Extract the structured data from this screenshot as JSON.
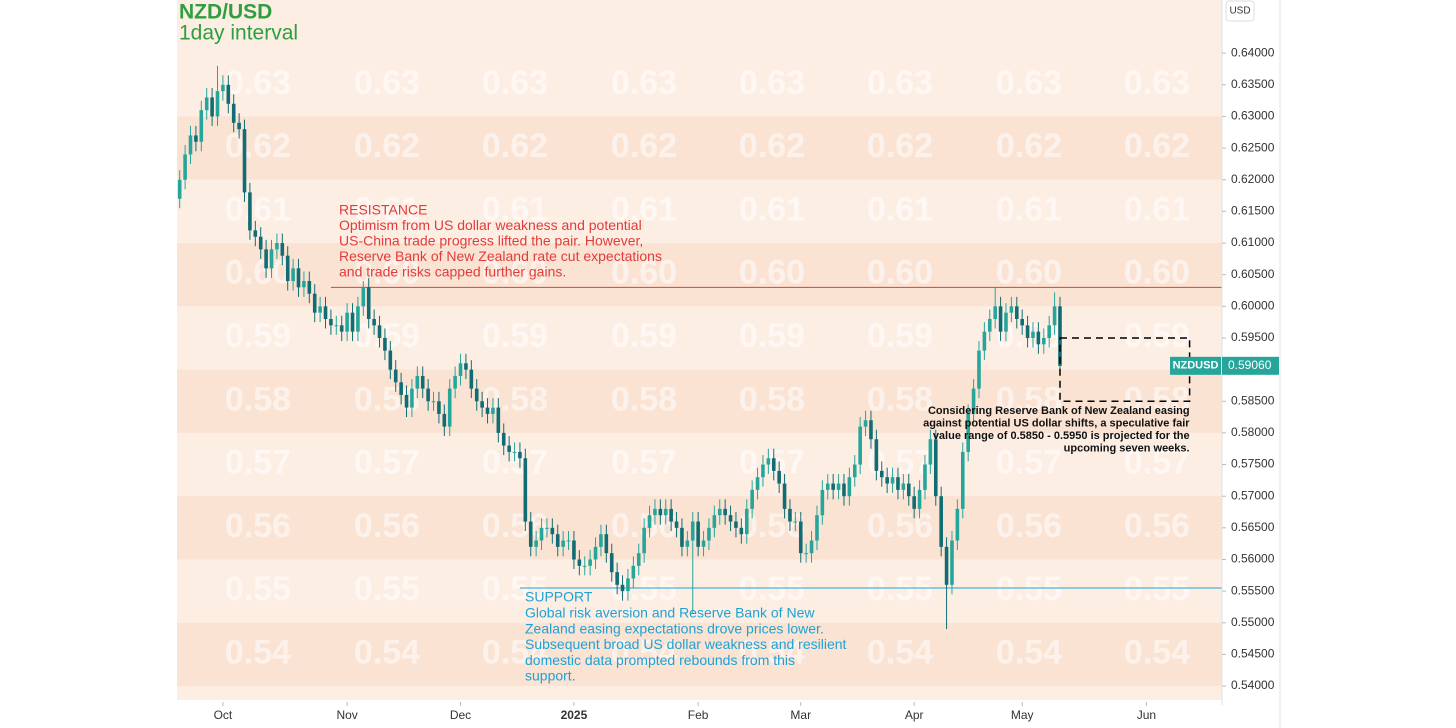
{
  "chart_data": {
    "type": "candlestick",
    "title": "NZD/USD",
    "subtitle": "1day interval",
    "currency": "USD",
    "symbol": "NZDUSD",
    "last_price": {
      "value": 0.5906,
      "label": "0.59060"
    },
    "up_color": "#26a69a",
    "down_color": "#116d73",
    "xlim": [
      -0.5,
      193
    ],
    "ylim": [
      0.5378,
      0.6484
    ],
    "xticks": [
      {
        "value": 8,
        "label": "Oct"
      },
      {
        "value": 31,
        "label": "Nov"
      },
      {
        "value": 52,
        "label": "Dec"
      },
      {
        "value": 73,
        "label": "2025"
      },
      {
        "value": 96,
        "label": "Feb"
      },
      {
        "value": 115,
        "label": "Mar"
      },
      {
        "value": 136,
        "label": "Apr"
      },
      {
        "value": 156,
        "label": "May"
      },
      {
        "value": 179,
        "label": "Jun"
      }
    ],
    "yticks": [
      {
        "value": 0.64,
        "label": "0.64000"
      },
      {
        "value": 0.635,
        "label": "0.63500"
      },
      {
        "value": 0.63,
        "label": "0.63000"
      },
      {
        "value": 0.625,
        "label": "0.62500"
      },
      {
        "value": 0.62,
        "label": "0.62000"
      },
      {
        "value": 0.615,
        "label": "0.61500"
      },
      {
        "value": 0.61,
        "label": "0.61000"
      },
      {
        "value": 0.605,
        "label": "0.60500"
      },
      {
        "value": 0.6,
        "label": "0.60000"
      },
      {
        "value": 0.595,
        "label": "0.59500"
      },
      {
        "value": 0.59,
        "label": "0.59000"
      },
      {
        "value": 0.585,
        "label": "0.58500"
      },
      {
        "value": 0.58,
        "label": "0.58000"
      },
      {
        "value": 0.575,
        "label": "0.57500"
      },
      {
        "value": 0.57,
        "label": "0.57000"
      },
      {
        "value": 0.565,
        "label": "0.56500"
      },
      {
        "value": 0.56,
        "label": "0.56000"
      },
      {
        "value": 0.555,
        "label": "0.55500"
      },
      {
        "value": 0.55,
        "label": "0.55000"
      },
      {
        "value": 0.545,
        "label": "0.54500"
      },
      {
        "value": 0.54,
        "label": "0.54000"
      }
    ],
    "background_levels": [
      "0.63",
      "0.62",
      "0.61",
      "0.60",
      "0.59",
      "0.58",
      "0.57",
      "0.56",
      "0.55",
      "0.54"
    ],
    "annotations": {
      "resistance": {
        "value": 0.603,
        "x_start": 28,
        "color": "#e03c3c",
        "text": [
          "RESISTANCE",
          "Optimism from US dollar weakness and potential",
          "US-China trade progress lifted the pair. However,",
          "Reserve Bank of New Zealand rate cut expectations",
          "and trade risks capped further gains."
        ]
      },
      "support": {
        "value": 0.5555,
        "x_start": 63,
        "color": "#1ea2d4",
        "text": [
          "SUPPORT",
          "Global risk aversion and Reserve Bank of New",
          "Zealand easing expectations drove prices lower.",
          "Subsequent broad US dollar weakness and resilient",
          "domestic data prompted rebounds from this",
          "support."
        ]
      },
      "projection": {
        "range": [
          0.585,
          0.595
        ],
        "x_range": [
          163,
          187
        ],
        "text": [
          "Considering Reserve Bank of New Zealand easing",
          "against potential US dollar shifts, a speculative fair",
          "value range of 0.5850 - 0.5950 is projected for the",
          "upcoming seven weeks."
        ]
      }
    },
    "x": [
      0,
      1,
      2,
      3,
      4,
      5,
      6,
      7,
      8,
      9,
      10,
      11,
      12,
      13,
      14,
      15,
      16,
      17,
      18,
      19,
      20,
      21,
      22,
      23,
      24,
      25,
      26,
      27,
      28,
      29,
      30,
      31,
      32,
      33,
      34,
      35,
      36,
      37,
      38,
      39,
      40,
      41,
      42,
      43,
      44,
      45,
      46,
      47,
      48,
      49,
      50,
      51,
      52,
      53,
      54,
      55,
      56,
      57,
      58,
      59,
      60,
      61,
      62,
      63,
      64,
      65,
      66,
      67,
      68,
      69,
      70,
      71,
      72,
      73,
      74,
      75,
      76,
      77,
      78,
      79,
      80,
      81,
      82,
      83,
      84,
      85,
      86,
      87,
      88,
      89,
      90,
      91,
      92,
      93,
      94,
      95,
      96,
      97,
      98,
      99,
      100,
      101,
      102,
      103,
      104,
      105,
      106,
      107,
      108,
      109,
      110,
      111,
      112,
      113,
      114,
      115,
      116,
      117,
      118,
      119,
      120,
      121,
      122,
      123,
      124,
      125,
      126,
      127,
      128,
      129,
      130,
      131,
      132,
      133,
      134,
      135,
      136,
      137,
      138,
      139,
      140,
      141,
      142,
      143,
      144,
      145,
      146,
      147,
      148,
      149,
      150,
      151,
      152,
      153,
      154,
      155,
      156,
      157,
      158,
      159,
      160,
      161,
      162,
      163
    ],
    "ohlc": [
      [
        0.617,
        0.6215,
        0.6155,
        0.62
      ],
      [
        0.62,
        0.6255,
        0.6185,
        0.624
      ],
      [
        0.624,
        0.6285,
        0.6225,
        0.627
      ],
      [
        0.627,
        0.6285,
        0.6245,
        0.626
      ],
      [
        0.626,
        0.6325,
        0.6245,
        0.631
      ],
      [
        0.631,
        0.6345,
        0.6295,
        0.633
      ],
      [
        0.633,
        0.6345,
        0.6285,
        0.63
      ],
      [
        0.63,
        0.638,
        0.6285,
        0.634
      ],
      [
        0.634,
        0.6365,
        0.6325,
        0.635
      ],
      [
        0.635,
        0.6365,
        0.6305,
        0.632
      ],
      [
        0.632,
        0.6335,
        0.6275,
        0.629
      ],
      [
        0.629,
        0.6305,
        0.6265,
        0.628
      ],
      [
        0.628,
        0.6295,
        0.6165,
        0.618
      ],
      [
        0.618,
        0.6195,
        0.6105,
        0.612
      ],
      [
        0.612,
        0.6135,
        0.6095,
        0.611
      ],
      [
        0.611,
        0.6125,
        0.6075,
        0.609
      ],
      [
        0.609,
        0.6105,
        0.6045,
        0.606
      ],
      [
        0.606,
        0.6105,
        0.6045,
        0.609
      ],
      [
        0.609,
        0.6115,
        0.6075,
        0.61
      ],
      [
        0.61,
        0.6115,
        0.6065,
        0.608
      ],
      [
        0.608,
        0.6095,
        0.6025,
        0.604
      ],
      [
        0.604,
        0.6075,
        0.6025,
        0.606
      ],
      [
        0.606,
        0.6075,
        0.6015,
        0.603
      ],
      [
        0.603,
        0.6055,
        0.6015,
        0.604
      ],
      [
        0.604,
        0.6055,
        0.6005,
        0.602
      ],
      [
        0.602,
        0.6035,
        0.5975,
        0.599
      ],
      [
        0.599,
        0.6015,
        0.5975,
        0.6
      ],
      [
        0.6,
        0.6015,
        0.5965,
        0.598
      ],
      [
        0.598,
        0.5995,
        0.5955,
        0.597
      ],
      [
        0.597,
        0.5985,
        0.5955,
        0.597
      ],
      [
        0.597,
        0.5985,
        0.5945,
        0.596
      ],
      [
        0.596,
        0.6005,
        0.5945,
        0.599
      ],
      [
        0.599,
        0.6005,
        0.5945,
        0.596
      ],
      [
        0.596,
        0.6015,
        0.5945,
        0.6
      ],
      [
        0.6,
        0.604,
        0.5985,
        0.603
      ],
      [
        0.603,
        0.6045,
        0.5965,
        0.598
      ],
      [
        0.598,
        0.5995,
        0.5955,
        0.597
      ],
      [
        0.597,
        0.5985,
        0.5935,
        0.595
      ],
      [
        0.595,
        0.5965,
        0.5915,
        0.593
      ],
      [
        0.593,
        0.5945,
        0.5885,
        0.59
      ],
      [
        0.59,
        0.5915,
        0.5865,
        0.588
      ],
      [
        0.588,
        0.5895,
        0.5845,
        0.586
      ],
      [
        0.586,
        0.5875,
        0.5825,
        0.584
      ],
      [
        0.584,
        0.5885,
        0.5825,
        0.587
      ],
      [
        0.587,
        0.5905,
        0.5855,
        0.589
      ],
      [
        0.589,
        0.5905,
        0.5855,
        0.587
      ],
      [
        0.587,
        0.5885,
        0.5835,
        0.585
      ],
      [
        0.585,
        0.5865,
        0.5835,
        0.585
      ],
      [
        0.585,
        0.5865,
        0.5815,
        0.583
      ],
      [
        0.583,
        0.5845,
        0.5795,
        0.581
      ],
      [
        0.581,
        0.5885,
        0.5795,
        0.587
      ],
      [
        0.587,
        0.5905,
        0.5855,
        0.589
      ],
      [
        0.589,
        0.5925,
        0.5875,
        0.591
      ],
      [
        0.591,
        0.5925,
        0.5885,
        0.59
      ],
      [
        0.59,
        0.5915,
        0.5855,
        0.587
      ],
      [
        0.587,
        0.5885,
        0.5835,
        0.585
      ],
      [
        0.585,
        0.5865,
        0.5825,
        0.584
      ],
      [
        0.584,
        0.5855,
        0.5815,
        0.583
      ],
      [
        0.583,
        0.5855,
        0.5815,
        0.584
      ],
      [
        0.584,
        0.5855,
        0.5785,
        0.58
      ],
      [
        0.58,
        0.5815,
        0.5765,
        0.578
      ],
      [
        0.578,
        0.5795,
        0.5755,
        0.577
      ],
      [
        0.577,
        0.5785,
        0.5755,
        0.577
      ],
      [
        0.577,
        0.5785,
        0.5745,
        0.576
      ],
      [
        0.576,
        0.5775,
        0.5645,
        0.566
      ],
      [
        0.566,
        0.5675,
        0.5605,
        0.562
      ],
      [
        0.562,
        0.5645,
        0.5605,
        0.563
      ],
      [
        0.563,
        0.5665,
        0.5615,
        0.565
      ],
      [
        0.565,
        0.5665,
        0.5635,
        0.565
      ],
      [
        0.565,
        0.5665,
        0.5625,
        0.564
      ],
      [
        0.564,
        0.5655,
        0.5605,
        0.562
      ],
      [
        0.562,
        0.5645,
        0.5605,
        0.563
      ],
      [
        0.563,
        0.5645,
        0.5615,
        0.563
      ],
      [
        0.563,
        0.5645,
        0.5585,
        0.56
      ],
      [
        0.56,
        0.5615,
        0.5575,
        0.559
      ],
      [
        0.559,
        0.5605,
        0.5575,
        0.559
      ],
      [
        0.559,
        0.5615,
        0.5575,
        0.56
      ],
      [
        0.56,
        0.5635,
        0.5585,
        0.562
      ],
      [
        0.562,
        0.5655,
        0.5605,
        0.564
      ],
      [
        0.564,
        0.5655,
        0.5595,
        0.561
      ],
      [
        0.561,
        0.5625,
        0.5565,
        0.558
      ],
      [
        0.558,
        0.5595,
        0.5545,
        0.556
      ],
      [
        0.556,
        0.5575,
        0.5535,
        0.555
      ],
      [
        0.555,
        0.5585,
        0.5535,
        0.557
      ],
      [
        0.557,
        0.5605,
        0.5555,
        0.559
      ],
      [
        0.559,
        0.5625,
        0.5575,
        0.561
      ],
      [
        0.561,
        0.5665,
        0.5595,
        0.565
      ],
      [
        0.565,
        0.5685,
        0.5635,
        0.567
      ],
      [
        0.567,
        0.5695,
        0.5655,
        0.568
      ],
      [
        0.568,
        0.5695,
        0.5655,
        0.567
      ],
      [
        0.567,
        0.5695,
        0.5655,
        0.568
      ],
      [
        0.568,
        0.5695,
        0.5645,
        0.566
      ],
      [
        0.566,
        0.5675,
        0.5635,
        0.565
      ],
      [
        0.565,
        0.5665,
        0.5605,
        0.562
      ],
      [
        0.562,
        0.5645,
        0.5605,
        0.563
      ],
      [
        0.563,
        0.5675,
        0.5515,
        0.566
      ],
      [
        0.566,
        0.5675,
        0.5605,
        0.562
      ],
      [
        0.562,
        0.5645,
        0.5605,
        0.563
      ],
      [
        0.563,
        0.5665,
        0.5615,
        0.565
      ],
      [
        0.565,
        0.5685,
        0.5635,
        0.567
      ],
      [
        0.567,
        0.5695,
        0.5655,
        0.568
      ],
      [
        0.568,
        0.5695,
        0.5655,
        0.567
      ],
      [
        0.567,
        0.5685,
        0.5645,
        0.566
      ],
      [
        0.566,
        0.5675,
        0.5635,
        0.565
      ],
      [
        0.565,
        0.5665,
        0.5625,
        0.564
      ],
      [
        0.564,
        0.5695,
        0.5625,
        0.568
      ],
      [
        0.568,
        0.5725,
        0.5665,
        0.571
      ],
      [
        0.571,
        0.5745,
        0.5695,
        0.573
      ],
      [
        0.573,
        0.5765,
        0.5715,
        0.575
      ],
      [
        0.575,
        0.5775,
        0.5735,
        0.576
      ],
      [
        0.576,
        0.5775,
        0.5725,
        0.574
      ],
      [
        0.574,
        0.5755,
        0.5705,
        0.572
      ],
      [
        0.572,
        0.5735,
        0.5665,
        0.568
      ],
      [
        0.568,
        0.5695,
        0.5645,
        0.566
      ],
      [
        0.566,
        0.5675,
        0.5645,
        0.566
      ],
      [
        0.566,
        0.5675,
        0.5595,
        0.561
      ],
      [
        0.561,
        0.5625,
        0.5595,
        0.561
      ],
      [
        0.561,
        0.5645,
        0.5595,
        0.563
      ],
      [
        0.563,
        0.5685,
        0.5615,
        0.567
      ],
      [
        0.567,
        0.5725,
        0.5655,
        0.571
      ],
      [
        0.571,
        0.5735,
        0.5695,
        0.572
      ],
      [
        0.572,
        0.5735,
        0.5695,
        0.571
      ],
      [
        0.571,
        0.5735,
        0.5695,
        0.572
      ],
      [
        0.572,
        0.5735,
        0.5685,
        0.57
      ],
      [
        0.57,
        0.5745,
        0.5685,
        0.573
      ],
      [
        0.573,
        0.5765,
        0.5715,
        0.575
      ],
      [
        0.575,
        0.5825,
        0.5735,
        0.581
      ],
      [
        0.581,
        0.5835,
        0.5795,
        0.582
      ],
      [
        0.582,
        0.5835,
        0.5775,
        0.579
      ],
      [
        0.579,
        0.5805,
        0.5725,
        0.574
      ],
      [
        0.574,
        0.5755,
        0.5715,
        0.573
      ],
      [
        0.573,
        0.5745,
        0.5705,
        0.572
      ],
      [
        0.572,
        0.5745,
        0.5705,
        0.573
      ],
      [
        0.573,
        0.5745,
        0.5695,
        0.571
      ],
      [
        0.571,
        0.5735,
        0.5695,
        0.572
      ],
      [
        0.572,
        0.5735,
        0.5685,
        0.57
      ],
      [
        0.57,
        0.5715,
        0.5665,
        0.568
      ],
      [
        0.568,
        0.5725,
        0.5665,
        0.571
      ],
      [
        0.571,
        0.5765,
        0.5695,
        0.575
      ],
      [
        0.575,
        0.5805,
        0.5735,
        0.579
      ],
      [
        0.579,
        0.5805,
        0.5685,
        0.57
      ],
      [
        0.57,
        0.5715,
        0.5605,
        0.562
      ],
      [
        0.562,
        0.5635,
        0.549,
        0.556
      ],
      [
        0.556,
        0.5645,
        0.5545,
        0.563
      ],
      [
        0.563,
        0.5695,
        0.5615,
        0.568
      ],
      [
        0.568,
        0.5785,
        0.5665,
        0.577
      ],
      [
        0.577,
        0.5845,
        0.5755,
        0.583
      ],
      [
        0.583,
        0.5885,
        0.5815,
        0.587
      ],
      [
        0.587,
        0.5945,
        0.5855,
        0.593
      ],
      [
        0.593,
        0.5975,
        0.5915,
        0.596
      ],
      [
        0.596,
        0.5995,
        0.5945,
        0.598
      ],
      [
        0.598,
        0.603,
        0.5965,
        0.6
      ],
      [
        0.6,
        0.6015,
        0.5945,
        0.596
      ],
      [
        0.596,
        0.6005,
        0.5945,
        0.599
      ],
      [
        0.599,
        0.6015,
        0.5975,
        0.6
      ],
      [
        0.6,
        0.6015,
        0.5965,
        0.598
      ],
      [
        0.598,
        0.5995,
        0.5955,
        0.597
      ],
      [
        0.597,
        0.5985,
        0.5935,
        0.595
      ],
      [
        0.595,
        0.5975,
        0.5935,
        0.596
      ],
      [
        0.596,
        0.5975,
        0.5925,
        0.594
      ],
      [
        0.594,
        0.5965,
        0.5925,
        0.595
      ],
      [
        0.595,
        0.5985,
        0.5935,
        0.597
      ],
      [
        0.597,
        0.6022,
        0.5955,
        0.6
      ],
      [
        0.6,
        0.6015,
        0.5895,
        0.5906
      ]
    ]
  }
}
